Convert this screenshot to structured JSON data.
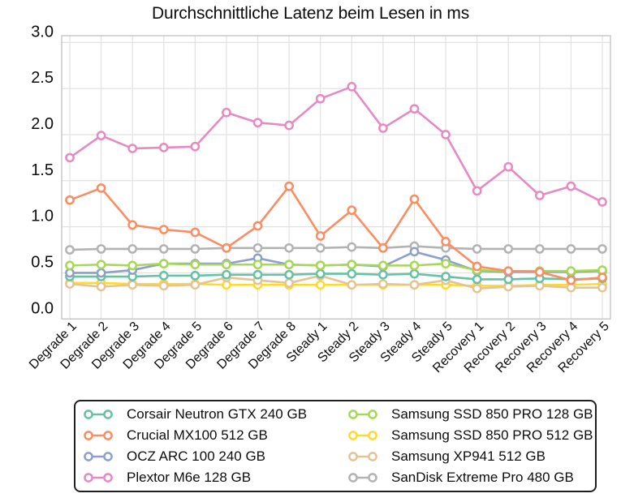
{
  "chart_data": {
    "type": "line",
    "title": "Durchschnittliche Latenz beim Lesen in ms",
    "xlabel": "",
    "ylabel": "",
    "ylim": [
      0,
      3
    ],
    "yticks": [
      3.0,
      2.5,
      2.0,
      1.5,
      1.0,
      0.5,
      0.0
    ],
    "ytick_labels": [
      "3.0",
      "2.5",
      "2.0",
      "1.5",
      "1.0",
      "0.5",
      "0.0"
    ],
    "grid": true,
    "legend_position": "bottom",
    "categories": [
      "Degrade 1",
      "Degrade 2",
      "Degrade 3",
      "Degrade 4",
      "Degrade 5",
      "Degrade 6",
      "Degrade 7",
      "Degrade 8",
      "Steady 1",
      "Steady 2",
      "Steady 3",
      "Steady 4",
      "Steady 5",
      "Recovery 1",
      "Recovery 2",
      "Recovery 3",
      "Recovery 4",
      "Recovery 5"
    ],
    "series": [
      {
        "name": "Corsair Neutron GTX 240 GB",
        "color": "#66c2a5",
        "values": [
          0.46,
          0.46,
          0.46,
          0.47,
          0.47,
          0.48,
          0.48,
          0.48,
          0.49,
          0.49,
          0.48,
          0.49,
          0.46,
          0.43,
          0.43,
          0.44,
          0.43,
          0.44
        ]
      },
      {
        "name": "Crucial MX100 512 GB",
        "color": "#fc8d62",
        "values": [
          1.29,
          1.42,
          1.02,
          0.97,
          0.94,
          0.77,
          1.01,
          1.44,
          0.9,
          1.18,
          0.77,
          1.3,
          0.84,
          0.57,
          0.52,
          0.51,
          0.42,
          0.45
        ]
      },
      {
        "name": "OCZ ARC 100 240 GB",
        "color": "#8da0cb",
        "values": [
          0.5,
          0.5,
          0.53,
          0.6,
          0.6,
          0.6,
          0.66,
          0.59,
          0.58,
          0.59,
          0.57,
          0.73,
          0.64,
          0.52,
          0.51,
          0.51,
          0.51,
          0.52
        ]
      },
      {
        "name": "Plextor M6e 128 GB",
        "color": "#e78ac3",
        "values": [
          1.75,
          1.99,
          1.85,
          1.86,
          1.87,
          2.24,
          2.13,
          2.1,
          2.39,
          2.52,
          2.07,
          2.28,
          2.0,
          1.39,
          1.65,
          1.34,
          1.44,
          1.27
        ]
      },
      {
        "name": "Samsung SSD 850 PRO 128 GB",
        "color": "#a6d854",
        "values": [
          0.58,
          0.59,
          0.58,
          0.6,
          0.59,
          0.59,
          0.59,
          0.59,
          0.58,
          0.59,
          0.58,
          0.58,
          0.6,
          0.53,
          0.52,
          0.52,
          0.52,
          0.53
        ]
      },
      {
        "name": "Samsung SSD 850 PRO 512 GB",
        "color": "#ffd92f",
        "values": [
          0.39,
          0.39,
          0.38,
          0.38,
          0.38,
          0.37,
          0.37,
          0.37,
          0.37,
          0.37,
          0.37,
          0.37,
          0.37,
          0.36,
          0.36,
          0.37,
          0.37,
          0.38
        ]
      },
      {
        "name": "Samsung XP941 512 GB",
        "color": "#e5c494",
        "values": [
          0.38,
          0.35,
          0.37,
          0.36,
          0.37,
          0.45,
          0.42,
          0.39,
          0.47,
          0.37,
          0.38,
          0.37,
          0.42,
          0.33,
          0.35,
          0.36,
          0.34,
          0.34
        ]
      },
      {
        "name": "SanDisk Extreme Pro 480 GB",
        "color": "#b3b3b3",
        "values": [
          0.75,
          0.76,
          0.76,
          0.76,
          0.76,
          0.77,
          0.77,
          0.77,
          0.77,
          0.78,
          0.77,
          0.79,
          0.77,
          0.76,
          0.76,
          0.76,
          0.76,
          0.76
        ]
      }
    ]
  }
}
